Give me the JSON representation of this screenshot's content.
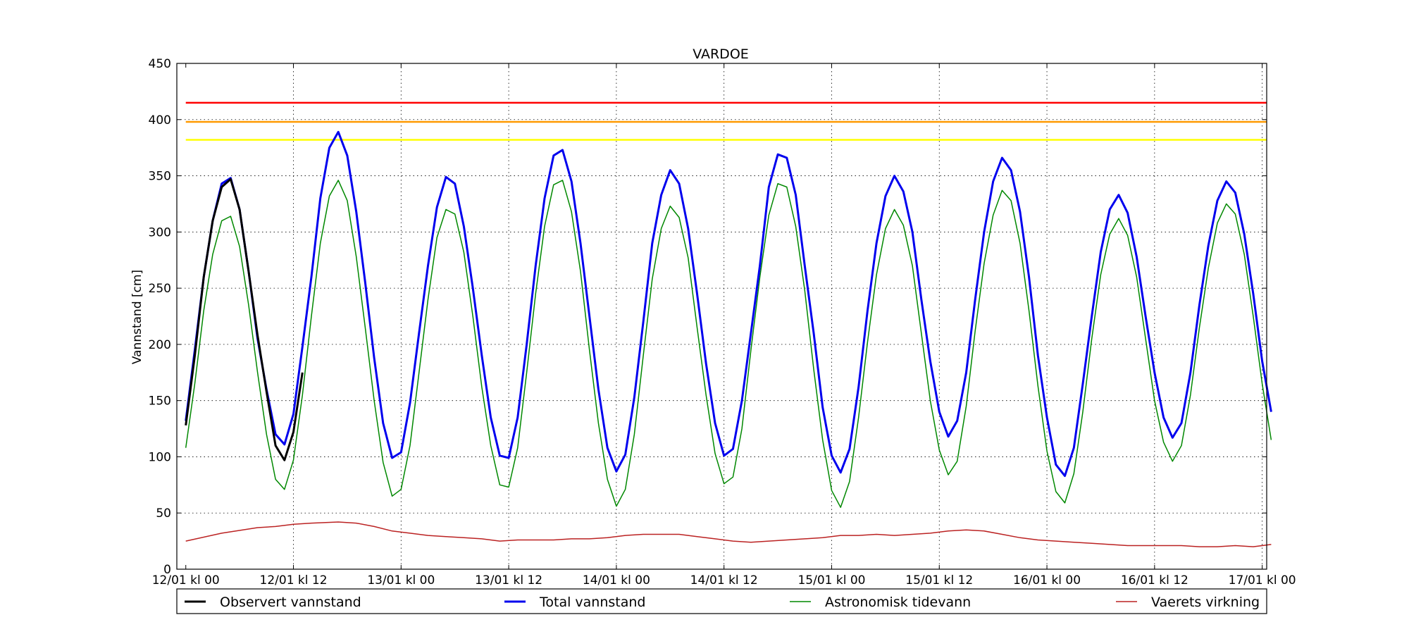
{
  "chart_data": {
    "type": "line",
    "title": "VARDOE",
    "ylabel": "Vannstand [cm]",
    "xlabel": "",
    "ylim": [
      0,
      450
    ],
    "yticks": [
      0,
      50,
      100,
      150,
      200,
      250,
      300,
      350,
      400,
      450
    ],
    "xlim_hours": [
      -1,
      120.5
    ],
    "xtick_labels": [
      "12/01 kl 00",
      "12/01 kl 12",
      "13/01 kl 00",
      "13/01 kl 12",
      "14/01 kl 00",
      "14/01 kl 12",
      "15/01 kl 00",
      "15/01 kl 12",
      "16/01 kl 00",
      "16/01 kl 12",
      "17/01 kl 00"
    ],
    "grid": true,
    "legend_position": "bottom",
    "thresholds": [
      {
        "value": 415,
        "color": "#ff0000"
      },
      {
        "value": 398,
        "color": "#ff9900"
      },
      {
        "value": 382,
        "color": "#ffff00"
      }
    ],
    "series": [
      {
        "name": "Observert vannstand",
        "color": "#000000",
        "width": 3,
        "x": [
          0,
          1,
          2,
          3,
          4,
          5,
          6,
          7,
          8,
          9,
          10,
          11,
          12,
          13
        ],
        "y": [
          128,
          190,
          260,
          310,
          340,
          347,
          320,
          265,
          208,
          158,
          110,
          97,
          122,
          175
        ]
      },
      {
        "name": "Total vannstand",
        "color": "#0000ee",
        "width": 3,
        "x": [
          0,
          1,
          2,
          3,
          4,
          5,
          6,
          7,
          8,
          9,
          10,
          11,
          12,
          13,
          14,
          15,
          16,
          17,
          18,
          19,
          20,
          21,
          22,
          23,
          24,
          25,
          26,
          27,
          28,
          29,
          30,
          31,
          32,
          33,
          34,
          35,
          36,
          37,
          38,
          39,
          40,
          41,
          42,
          43,
          44,
          45,
          46,
          47,
          48,
          49,
          50,
          51,
          52,
          53,
          54,
          55,
          56,
          57,
          58,
          59,
          60,
          61,
          62,
          63,
          64,
          65,
          66,
          67,
          68,
          69,
          70,
          71,
          72,
          73,
          74,
          75,
          76,
          77,
          78,
          79,
          80,
          81,
          82,
          83,
          84,
          85,
          86,
          87,
          88,
          89,
          90,
          91,
          92,
          93,
          94,
          95,
          96,
          97,
          98,
          99,
          100,
          101,
          102,
          103,
          104,
          105,
          106,
          107,
          108,
          109,
          110,
          111,
          112,
          113,
          114,
          115,
          116,
          117,
          118,
          119,
          120,
          121
        ],
        "y": [
          132,
          195,
          260,
          310,
          343,
          348,
          320,
          265,
          205,
          160,
          120,
          111,
          138,
          198,
          260,
          330,
          375,
          389,
          368,
          318,
          255,
          188,
          130,
          99,
          104,
          148,
          210,
          270,
          322,
          349,
          343,
          305,
          250,
          190,
          135,
          101,
          99,
          135,
          200,
          270,
          330,
          368,
          373,
          345,
          290,
          225,
          160,
          108,
          87,
          102,
          153,
          220,
          290,
          333,
          355,
          343,
          303,
          245,
          183,
          130,
          101,
          107,
          150,
          210,
          270,
          340,
          369,
          366,
          333,
          270,
          210,
          144,
          101,
          86,
          107,
          162,
          230,
          290,
          332,
          350,
          336,
          300,
          240,
          185,
          140,
          118,
          132,
          175,
          240,
          300,
          345,
          366,
          355,
          318,
          260,
          190,
          135,
          93,
          83,
          108,
          165,
          225,
          282,
          320,
          333,
          317,
          278,
          225,
          175,
          135,
          117,
          130,
          175,
          235,
          288,
          328,
          345,
          335,
          298,
          245,
          185,
          140
        ]
      },
      {
        "name": "Astronomisk tidevann",
        "color": "#008800",
        "width": 1.5,
        "x": [
          0,
          1,
          2,
          3,
          4,
          5,
          6,
          7,
          8,
          9,
          10,
          11,
          12,
          13,
          14,
          15,
          16,
          17,
          18,
          19,
          20,
          21,
          22,
          23,
          24,
          25,
          26,
          27,
          28,
          29,
          30,
          31,
          32,
          33,
          34,
          35,
          36,
          37,
          38,
          39,
          40,
          41,
          42,
          43,
          44,
          45,
          46,
          47,
          48,
          49,
          50,
          51,
          52,
          53,
          54,
          55,
          56,
          57,
          58,
          59,
          60,
          61,
          62,
          63,
          64,
          65,
          66,
          67,
          68,
          69,
          70,
          71,
          72,
          73,
          74,
          75,
          76,
          77,
          78,
          79,
          80,
          81,
          82,
          83,
          84,
          85,
          86,
          87,
          88,
          89,
          90,
          91,
          92,
          93,
          94,
          95,
          96,
          97,
          98,
          99,
          100,
          101,
          102,
          103,
          104,
          105,
          106,
          107,
          108,
          109,
          110,
          111,
          112,
          113,
          114,
          115,
          116,
          117,
          118,
          119,
          120,
          121
        ],
        "y": [
          108,
          165,
          230,
          280,
          310,
          314,
          287,
          235,
          175,
          120,
          80,
          71,
          97,
          155,
          225,
          290,
          332,
          346,
          328,
          278,
          215,
          150,
          95,
          65,
          71,
          110,
          175,
          240,
          295,
          320,
          316,
          282,
          225,
          162,
          110,
          75,
          73,
          108,
          175,
          245,
          305,
          342,
          346,
          318,
          265,
          195,
          130,
          80,
          56,
          71,
          120,
          190,
          258,
          303,
          323,
          313,
          277,
          215,
          155,
          103,
          76,
          82,
          125,
          195,
          260,
          315,
          343,
          340,
          305,
          248,
          178,
          115,
          70,
          55,
          78,
          135,
          202,
          262,
          303,
          320,
          306,
          270,
          210,
          150,
          106,
          84,
          96,
          145,
          212,
          272,
          315,
          337,
          328,
          290,
          230,
          163,
          105,
          69,
          59,
          85,
          140,
          205,
          262,
          298,
          312,
          297,
          260,
          205,
          150,
          113,
          96,
          110,
          155,
          215,
          268,
          308,
          325,
          316,
          280,
          225,
          165,
          115
        ]
      },
      {
        "name": "Vaerets virkning",
        "color": "#bb2222",
        "width": 1.5,
        "x": [
          0,
          4,
          8,
          10,
          12,
          14,
          17,
          19,
          21,
          23,
          25,
          27,
          29,
          31,
          33,
          35,
          37,
          39,
          41,
          43,
          45,
          47,
          49,
          51,
          53,
          55,
          57,
          59,
          61,
          63,
          65,
          67,
          69,
          71,
          73,
          75,
          77,
          79,
          81,
          83,
          85,
          87,
          89,
          91,
          93,
          95,
          97,
          99,
          101,
          103,
          105,
          107,
          109,
          111,
          113,
          115,
          117,
          119,
          121
        ],
        "y": [
          25,
          32,
          37,
          38,
          40,
          41,
          42,
          41,
          38,
          34,
          32,
          30,
          29,
          28,
          27,
          25,
          26,
          26,
          26,
          27,
          27,
          28,
          30,
          31,
          31,
          31,
          29,
          27,
          25,
          24,
          25,
          26,
          27,
          28,
          30,
          30,
          31,
          30,
          31,
          32,
          34,
          35,
          34,
          31,
          28,
          26,
          25,
          24,
          23,
          22,
          21,
          21,
          21,
          21,
          20,
          20,
          21,
          20,
          22
        ]
      }
    ]
  }
}
